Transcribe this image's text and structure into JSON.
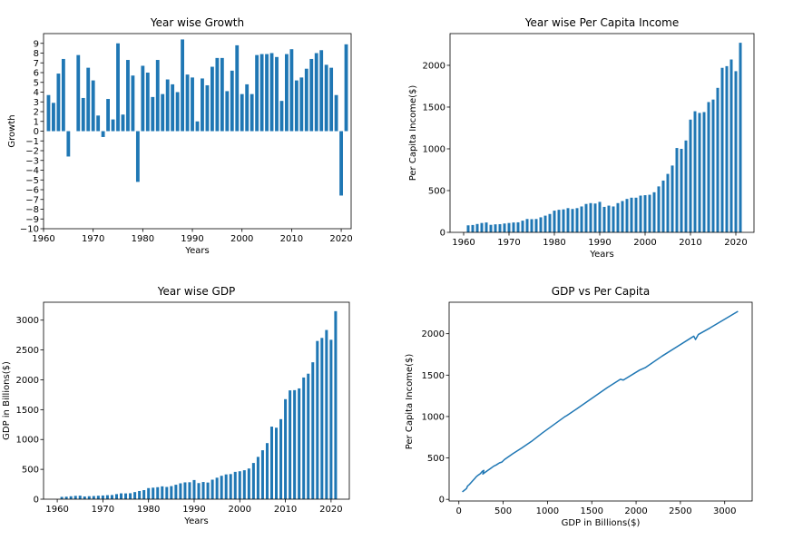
{
  "chart_data": [
    {
      "type": "bar",
      "title": "Year wise Growth",
      "xlabel": "Years",
      "ylabel": "Growth",
      "xlim": [
        1960,
        2022
      ],
      "ylim": [
        -10,
        10
      ],
      "xticks": [
        1960,
        1970,
        1980,
        1990,
        2000,
        2010,
        2020
      ],
      "yticks": [
        -10,
        -9,
        -8,
        -7,
        -6,
        -5,
        -4,
        -3,
        -2,
        -1,
        0,
        1,
        2,
        3,
        4,
        5,
        6,
        7,
        8,
        9
      ],
      "grid": false,
      "color": "#1f77b4",
      "x": [
        1961,
        1962,
        1963,
        1964,
        1965,
        1966,
        1967,
        1968,
        1969,
        1970,
        1971,
        1972,
        1973,
        1974,
        1975,
        1976,
        1977,
        1978,
        1979,
        1980,
        1981,
        1982,
        1983,
        1984,
        1985,
        1986,
        1987,
        1988,
        1989,
        1990,
        1991,
        1992,
        1993,
        1994,
        1995,
        1996,
        1997,
        1998,
        1999,
        2000,
        2001,
        2002,
        2003,
        2004,
        2005,
        2006,
        2007,
        2008,
        2009,
        2010,
        2011,
        2012,
        2013,
        2014,
        2015,
        2016,
        2017,
        2018,
        2019,
        2020,
        2021
      ],
      "values": [
        3.7,
        2.9,
        5.9,
        7.4,
        -2.6,
        0.0,
        7.8,
        3.4,
        6.5,
        5.2,
        1.6,
        -0.6,
        3.3,
        1.2,
        9.0,
        1.7,
        7.3,
        5.7,
        -5.2,
        6.7,
        6.0,
        3.5,
        7.3,
        3.8,
        5.3,
        4.8,
        4.0,
        9.4,
        5.8,
        5.5,
        1.0,
        5.4,
        4.7,
        6.6,
        7.5,
        7.5,
        4.1,
        6.2,
        8.8,
        3.8,
        4.8,
        3.8,
        7.8,
        7.9,
        7.9,
        8.0,
        7.6,
        3.1,
        7.9,
        8.4,
        5.2,
        5.5,
        6.4,
        7.4,
        8.0,
        8.3,
        6.8,
        6.5,
        3.7,
        -6.6,
        8.9
      ]
    },
    {
      "type": "bar",
      "title": "Year wise Per Capita Income",
      "xlabel": "Years",
      "ylabel": "Per Capita Income($)",
      "xlim": [
        1957,
        2024
      ],
      "ylim": [
        0,
        2380
      ],
      "xticks": [
        1960,
        1970,
        1980,
        1990,
        2000,
        2010,
        2020
      ],
      "yticks": [
        0,
        500,
        1000,
        1500,
        2000
      ],
      "grid": false,
      "color": "#1f77b4",
      "x": [
        1961,
        1962,
        1963,
        1964,
        1965,
        1966,
        1967,
        1968,
        1969,
        1970,
        1971,
        1972,
        1973,
        1974,
        1975,
        1976,
        1977,
        1978,
        1979,
        1980,
        1981,
        1982,
        1983,
        1984,
        1985,
        1986,
        1987,
        1988,
        1989,
        1990,
        1991,
        1992,
        1993,
        1994,
        1995,
        1996,
        1997,
        1998,
        1999,
        2000,
        2001,
        2002,
        2003,
        2004,
        2005,
        2006,
        2007,
        2008,
        2009,
        2010,
        2011,
        2012,
        2013,
        2014,
        2015,
        2016,
        2017,
        2018,
        2019,
        2020,
        2021
      ],
      "values": [
        84,
        88,
        100,
        112,
        118,
        90,
        96,
        98,
        106,
        112,
        118,
        120,
        140,
        160,
        158,
        160,
        180,
        200,
        220,
        260,
        270,
        275,
        290,
        280,
        290,
        310,
        340,
        350,
        345,
        365,
        305,
        320,
        310,
        350,
        375,
        400,
        415,
        415,
        440,
        445,
        450,
        480,
        550,
        620,
        700,
        800,
        1010,
        1000,
        1100,
        1350,
        1450,
        1430,
        1440,
        1560,
        1590,
        1730,
        1970,
        1990,
        2070,
        1930,
        2270
      ]
    },
    {
      "type": "bar",
      "title": "Year wise GDP",
      "xlabel": "Years",
      "ylabel": "GDP in Billions($)",
      "xlim": [
        1957,
        2024
      ],
      "ylim": [
        0,
        3300
      ],
      "xticks": [
        1960,
        1970,
        1980,
        1990,
        2000,
        2010,
        2020
      ],
      "yticks": [
        0,
        500,
        1000,
        1500,
        2000,
        2500,
        3000
      ],
      "grid": false,
      "color": "#1f77b4",
      "x": [
        1961,
        1962,
        1963,
        1964,
        1965,
        1966,
        1967,
        1968,
        1969,
        1970,
        1971,
        1972,
        1973,
        1974,
        1975,
        1976,
        1977,
        1978,
        1979,
        1980,
        1981,
        1982,
        1983,
        1984,
        1985,
        1986,
        1987,
        1988,
        1989,
        1990,
        1991,
        1992,
        1993,
        1994,
        1995,
        1996,
        1997,
        1998,
        1999,
        2000,
        2001,
        2002,
        2003,
        2004,
        2005,
        2006,
        2007,
        2008,
        2009,
        2010,
        2011,
        2012,
        2013,
        2014,
        2015,
        2016,
        2017,
        2018,
        2019,
        2020,
        2021
      ],
      "values": [
        39,
        42,
        49,
        56,
        59,
        46,
        50,
        53,
        58,
        62,
        67,
        70,
        85,
        98,
        97,
        100,
        119,
        137,
        152,
        186,
        193,
        201,
        215,
        205,
        219,
        242,
        266,
        282,
        284,
        321,
        270,
        288,
        279,
        327,
        360,
        392,
        415,
        421,
        458,
        468,
        485,
        514,
        607,
        709,
        820,
        940,
        1216,
        1198,
        1341,
        1676,
        1823,
        1827,
        1856,
        2039,
        2103,
        2294,
        2651,
        2702,
        2835,
        2671,
        3150
      ]
    },
    {
      "type": "line",
      "title": "GDP vs Per Capita",
      "xlabel": "GDP in Billions($)",
      "ylabel": "Per Capita Income($)",
      "xlim": [
        -110,
        3310
      ],
      "ylim": [
        -20,
        2380
      ],
      "xticks": [
        0,
        500,
        1000,
        1500,
        2000,
        2500,
        3000
      ],
      "yticks": [
        0,
        500,
        1000,
        1500,
        2000
      ],
      "grid": false,
      "color": "#1f77b4",
      "x": [
        39,
        58,
        86,
        98,
        119,
        152,
        186,
        193,
        215,
        242,
        266,
        282,
        270,
        288,
        327,
        360,
        392,
        421,
        458,
        485,
        514,
        607,
        709,
        820,
        940,
        1198,
        1216,
        1341,
        1676,
        1823,
        1856,
        2039,
        2103,
        2294,
        2651,
        2671,
        2702,
        2835,
        3150
      ],
      "y": [
        90,
        106,
        130,
        160,
        180,
        220,
        260,
        270,
        290,
        310,
        340,
        350,
        305,
        320,
        350,
        375,
        400,
        415,
        440,
        450,
        480,
        550,
        620,
        700,
        800,
        1000,
        1010,
        1100,
        1350,
        1450,
        1440,
        1560,
        1590,
        1730,
        1970,
        1930,
        1990,
        2070,
        2270
      ]
    }
  ]
}
